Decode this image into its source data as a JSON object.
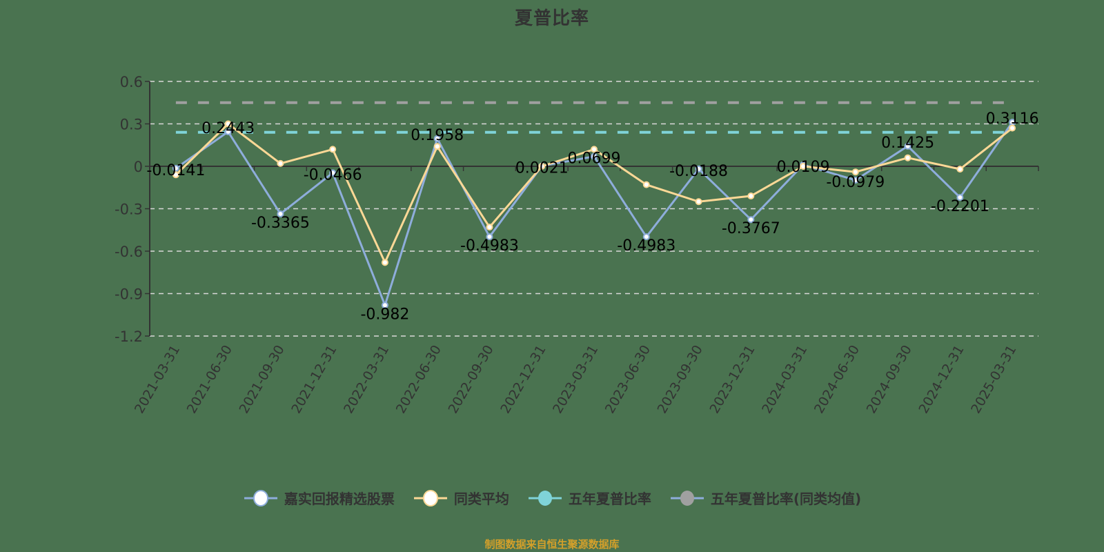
{
  "chart_data": {
    "type": "line",
    "title": "夏普比率",
    "xlabel": "",
    "ylabel": "",
    "ylim": [
      -1.2,
      0.6
    ],
    "yticks": [
      0.6,
      0.3,
      0,
      -0.3,
      -0.6,
      -0.9,
      -1.2
    ],
    "ytick_labels": [
      "0.6",
      "0.3",
      "0",
      "-0.3",
      "-0.6",
      "-0.9",
      "-1.2"
    ],
    "grid": true,
    "legend_position": "bottom",
    "categories": [
      "2021-03-31",
      "2021-06-30",
      "2021-09-30",
      "2021-12-31",
      "2022-03-31",
      "2022-06-30",
      "2022-09-30",
      "2022-12-31",
      "2023-03-31",
      "2023-06-30",
      "2023-09-30",
      "2023-12-31",
      "2024-03-31",
      "2024-06-30",
      "2024-09-30",
      "2024-12-31",
      "2025-03-31"
    ],
    "series": [
      {
        "name": "嘉实回报精选股票",
        "color": "#8eaddb",
        "show_labels": true,
        "values": [
          -0.0141,
          0.2443,
          -0.3365,
          -0.0466,
          -0.982,
          0.1958,
          -0.4983,
          0.0021,
          0.0699,
          -0.4983,
          -0.0188,
          -0.3767,
          0.0109,
          -0.0979,
          0.1425,
          -0.2201,
          0.3116
        ]
      },
      {
        "name": "同类平均",
        "color": "#fcd896",
        "show_labels": false,
        "values": [
          -0.06,
          0.3,
          0.02,
          0.12,
          -0.68,
          0.14,
          -0.43,
          0.0,
          0.12,
          -0.13,
          -0.25,
          -0.21,
          0.0,
          -0.04,
          0.06,
          -0.02,
          0.27
        ]
      },
      {
        "name": "五年夏普比率",
        "color": "#7fd3d8",
        "type": "hline",
        "value": 0.24
      },
      {
        "name": "五年夏普比率(同类均值)",
        "color": "#a0a0a0",
        "type": "hline",
        "value": 0.45
      }
    ],
    "footer": "制图数据来自恒生聚源数据库"
  },
  "colors": {
    "background": "#4a7350",
    "axis": "#333333",
    "grid": "#d9d9d9",
    "label": "#000000",
    "footer": "#d4a02a"
  }
}
